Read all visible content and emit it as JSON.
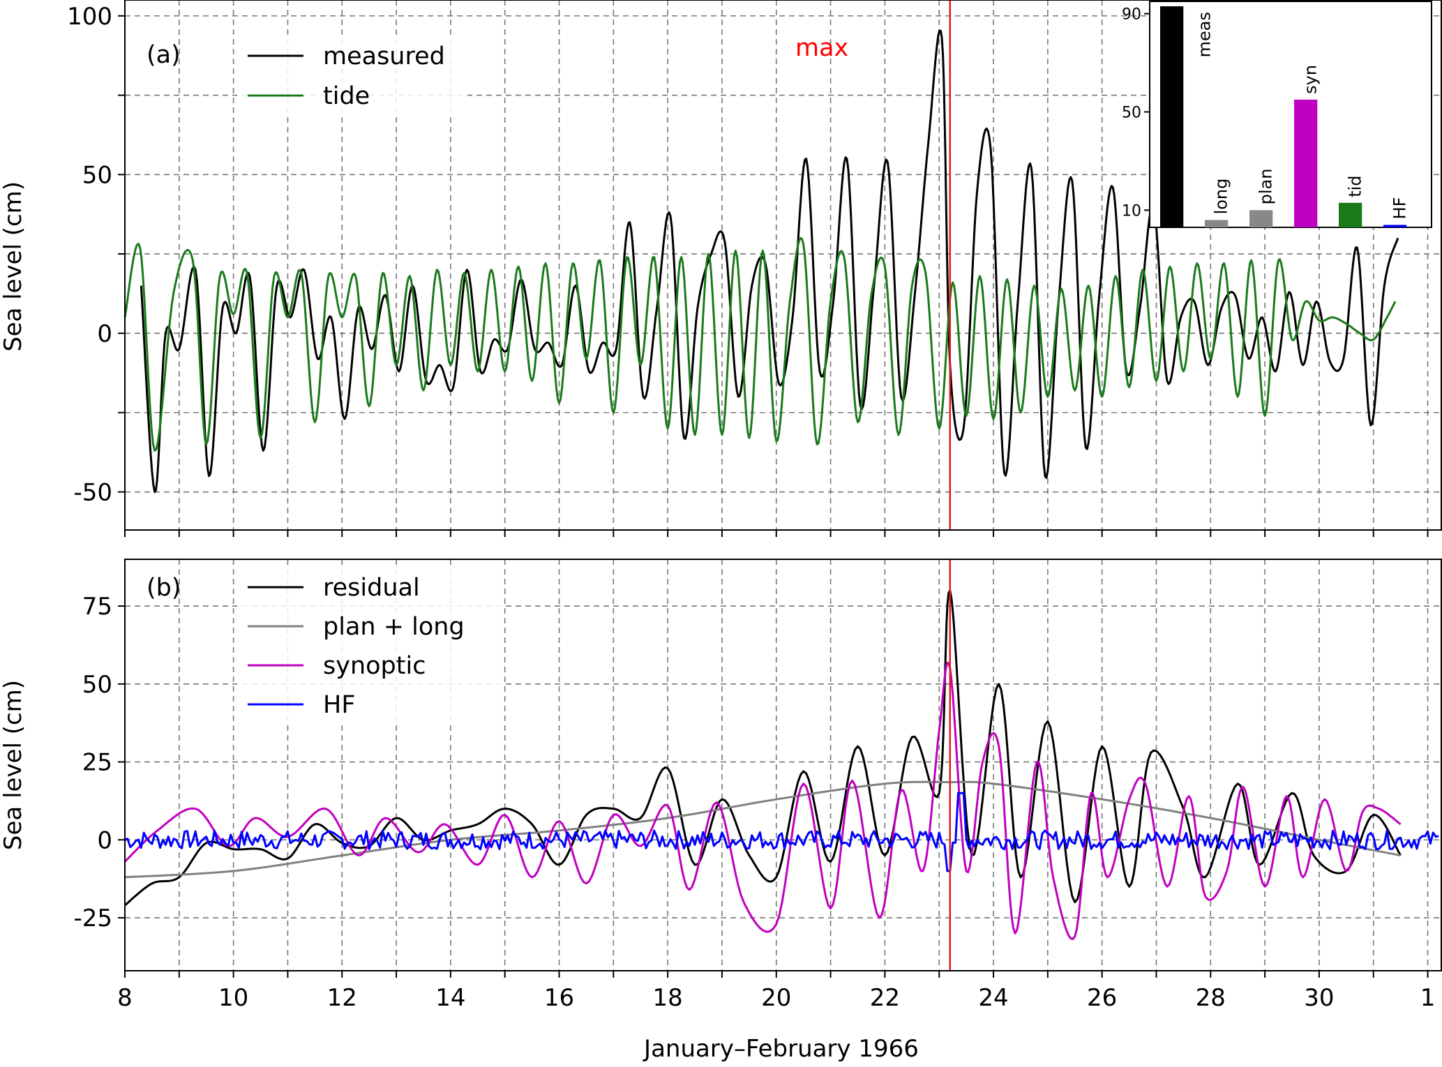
{
  "chart_data": [
    {
      "type": "line",
      "panel_label": "(a)",
      "xlabel": "",
      "ylabel": "Sea level (cm)",
      "ylim": [
        -62,
        105
      ],
      "xlim": [
        "1966-01-08",
        "1966-02-01 T06"
      ],
      "x_ticks": [
        "8",
        "10",
        "12",
        "14",
        "16",
        "18",
        "20",
        "22",
        "24",
        "26",
        "28",
        "30",
        "1"
      ],
      "y_ticks": [
        "-50",
        "0",
        "50",
        "100"
      ],
      "grid": true,
      "legend_position": "top-left",
      "annotation": {
        "text": "max",
        "color": "#ff0000",
        "x_day": 23.2
      },
      "vline": {
        "x_day": 23.2,
        "color": "#e41a1c"
      },
      "series": [
        {
          "name": "measured",
          "color": "#000000",
          "peaks_x_day": [
            8.3,
            8.55,
            8.75,
            9.0,
            9.3,
            9.55,
            9.8,
            10.05,
            10.3,
            10.55,
            10.8,
            11.05,
            11.3,
            11.55,
            11.8,
            12.05,
            12.3,
            12.55,
            12.8,
            13.05,
            13.3,
            13.55,
            13.8,
            14.05,
            14.3,
            14.55,
            14.8,
            15.05,
            15.3,
            15.55,
            15.8,
            16.05,
            16.3,
            16.55,
            16.8,
            17.05,
            17.3,
            17.55,
            17.8,
            18.05,
            18.3,
            18.55,
            18.8,
            19.05,
            19.3,
            19.55,
            19.8,
            20.05,
            20.3,
            20.55,
            20.8,
            21.05,
            21.3,
            21.55,
            21.8,
            22.05,
            22.3,
            22.55,
            22.8,
            23.05,
            23.2,
            23.45,
            23.7,
            23.95,
            24.2,
            24.45,
            24.7,
            24.95,
            25.2,
            25.45,
            25.7,
            25.95,
            26.2,
            26.45,
            26.7,
            26.95,
            27.2,
            27.45,
            27.7,
            27.95,
            28.2,
            28.45,
            28.7,
            28.95,
            29.2,
            29.45,
            29.7,
            29.95,
            30.2,
            30.45,
            30.7,
            30.95,
            31.2,
            31.45
          ],
          "values": [
            15,
            -50,
            0,
            -5,
            20,
            -45,
            8,
            0,
            18,
            -37,
            15,
            5,
            20,
            -8,
            5,
            -27,
            8,
            -5,
            12,
            -12,
            15,
            -15,
            -10,
            -17,
            20,
            -12,
            -2,
            -5,
            17,
            -5,
            -3,
            -10,
            15,
            -12,
            -3,
            -5,
            35,
            -20,
            8,
            37,
            -33,
            8,
            25,
            29,
            -20,
            15,
            22,
            -16,
            5,
            55,
            -12,
            10,
            55,
            -23,
            15,
            54,
            -20,
            12,
            60,
            93,
            -10,
            -30,
            45,
            58,
            -44,
            10,
            52,
            -45,
            10,
            48,
            -36,
            12,
            46,
            -12,
            8,
            40,
            -15,
            5,
            10,
            -10,
            8,
            12,
            -8,
            5,
            -12,
            13,
            -10,
            10,
            -9,
            -8,
            27,
            -29,
            15,
            30
          ]
        },
        {
          "name": "tide",
          "color": "#1a7a1a",
          "x_day": [
            8.0,
            8.28,
            8.55,
            8.9,
            9.25,
            9.5,
            9.75,
            10.0,
            10.25,
            10.5,
            10.75,
            11.0,
            11.25,
            11.5,
            11.75,
            12.0,
            12.25,
            12.5,
            12.75,
            13.0,
            13.25,
            13.5,
            13.75,
            14.0,
            14.25,
            14.5,
            14.75,
            15.0,
            15.25,
            15.5,
            15.75,
            16.0,
            16.25,
            16.5,
            16.75,
            17.0,
            17.25,
            17.5,
            17.75,
            18.0,
            18.25,
            18.5,
            18.75,
            19.0,
            19.25,
            19.5,
            19.75,
            20.0,
            20.25,
            20.5,
            20.75,
            21.0,
            21.25,
            21.5,
            21.75,
            22.0,
            22.25,
            22.5,
            22.75,
            23.0,
            23.25,
            23.5,
            23.75,
            24.0,
            24.25,
            24.5,
            24.75,
            25.0,
            25.25,
            25.5,
            25.75,
            26.0,
            26.25,
            26.5,
            26.75,
            27.0,
            27.25,
            27.5,
            27.75,
            28.0,
            28.25,
            28.5,
            28.75,
            29.0,
            29.25,
            29.5,
            29.75,
            30.0,
            30.25,
            30.5,
            30.75,
            31.0,
            31.25,
            31.4
          ],
          "values": [
            5,
            27,
            -37,
            13,
            23,
            -35,
            18,
            6,
            19,
            -33,
            18,
            5,
            19,
            -28,
            18,
            5,
            18,
            -23,
            19,
            -10,
            18,
            -18,
            20,
            -10,
            19,
            -12,
            20,
            -12,
            21,
            -15,
            22,
            -22,
            22,
            -8,
            23,
            -25,
            24,
            -10,
            24,
            -30,
            24,
            -32,
            25,
            -32,
            26,
            -33,
            26,
            -34,
            10,
            28,
            -35,
            10,
            24,
            -28,
            12,
            21,
            -32,
            15,
            19,
            -30,
            16,
            -26,
            18,
            -27,
            17,
            -25,
            15,
            -20,
            14,
            -18,
            15,
            -20,
            18,
            -17,
            20,
            -15,
            21,
            -12,
            22,
            -8,
            22,
            -20,
            23,
            -26,
            23,
            -2,
            10,
            4,
            5,
            3,
            0,
            -2,
            5,
            10
          ]
        }
      ],
      "inset": {
        "type": "bar",
        "categories": [
          "meas",
          "long",
          "plan",
          "syn",
          "tid",
          "HF"
        ],
        "values": [
          93,
          6,
          10,
          55,
          13,
          4
        ],
        "colors": [
          "#000000",
          "#888888",
          "#888888",
          "#c000c0",
          "#1a7a1a",
          "#0000ff"
        ],
        "y_ticks": [
          "10",
          "50",
          "90"
        ],
        "ylim": [
          3,
          95
        ]
      }
    },
    {
      "type": "line",
      "panel_label": "(b)",
      "xlabel": "January–February 1966",
      "ylabel": "Sea level (cm)",
      "ylim": [
        -42,
        90
      ],
      "y_ticks": [
        "-25",
        "0",
        "25",
        "50",
        "75"
      ],
      "x_ticks": [
        "8",
        "10",
        "12",
        "14",
        "16",
        "18",
        "20",
        "22",
        "24",
        "26",
        "28",
        "30",
        "1"
      ],
      "grid": true,
      "legend_position": "top-left",
      "vline": {
        "x_day": 23.2,
        "color": "#e41a1c"
      },
      "series": [
        {
          "name": "residual",
          "color": "#000000",
          "x_day": [
            8.0,
            8.5,
            9.0,
            9.5,
            10.0,
            10.5,
            11.0,
            11.5,
            12.0,
            12.5,
            13.0,
            13.5,
            14.0,
            14.5,
            15.0,
            15.5,
            16.0,
            16.5,
            17.0,
            17.5,
            18.0,
            18.5,
            19.0,
            19.5,
            20.0,
            20.5,
            21.0,
            21.5,
            22.0,
            22.5,
            23.0,
            23.2,
            23.6,
            24.1,
            24.5,
            25.0,
            25.5,
            26.0,
            26.5,
            26.9,
            27.5,
            27.9,
            28.5,
            28.9,
            29.5,
            29.9,
            30.5,
            31.0,
            31.5
          ],
          "values": [
            -21,
            -14,
            -12,
            -1,
            -3,
            -3,
            -6,
            5,
            -1,
            -2,
            7,
            0,
            3,
            5,
            10,
            5,
            -8,
            8,
            10,
            7,
            23,
            -8,
            13,
            -5,
            -12,
            22,
            -7,
            30,
            -5,
            33,
            15,
            80,
            -5,
            50,
            -12,
            38,
            -20,
            30,
            -15,
            28,
            10,
            -12,
            18,
            -8,
            15,
            -5,
            -10,
            8,
            -5
          ]
        },
        {
          "name": "plan + long",
          "color": "#808080",
          "x_day": [
            8.0,
            10.0,
            12.0,
            14.0,
            16.0,
            18.0,
            20.0,
            22.0,
            23.2,
            24.0,
            26.0,
            28.0,
            30.0,
            31.5
          ],
          "values": [
            -12,
            -10,
            -5,
            0,
            3,
            7,
            13,
            18,
            18.5,
            18,
            13,
            7,
            0,
            -5
          ]
        },
        {
          "name": "synoptic",
          "color": "#c000c0",
          "x_day": [
            8.0,
            8.6,
            9.3,
            9.9,
            10.4,
            11.0,
            11.7,
            12.3,
            12.8,
            13.4,
            13.9,
            14.5,
            15.0,
            15.5,
            16.0,
            16.5,
            17.0,
            17.5,
            18.0,
            18.4,
            18.9,
            19.4,
            20.0,
            20.5,
            21.0,
            21.4,
            21.9,
            22.3,
            22.7,
            23.0,
            23.2,
            23.5,
            23.8,
            24.1,
            24.4,
            24.8,
            25.1,
            25.5,
            25.8,
            26.1,
            26.5,
            26.8,
            27.2,
            27.6,
            27.9,
            28.3,
            28.6,
            29.0,
            29.4,
            29.7,
            30.1,
            30.5,
            30.8,
            31.1,
            31.5
          ],
          "values": [
            -7,
            3,
            10,
            -2,
            7,
            1,
            10,
            -5,
            7,
            -4,
            5,
            -8,
            8,
            -12,
            6,
            -14,
            8,
            -2,
            11,
            -16,
            12,
            -20,
            -27,
            18,
            -22,
            19,
            -25,
            16,
            -10,
            35,
            55,
            -10,
            25,
            30,
            -30,
            25,
            -12,
            -31,
            15,
            -12,
            13,
            18,
            -15,
            14,
            -18,
            -10,
            17,
            -15,
            14,
            -12,
            13,
            -10,
            9,
            10,
            5
          ]
        },
        {
          "name": "HF",
          "color": "#0000ff",
          "amplitude": 3,
          "spike_max": 15,
          "spike_min": -10
        }
      ]
    }
  ]
}
